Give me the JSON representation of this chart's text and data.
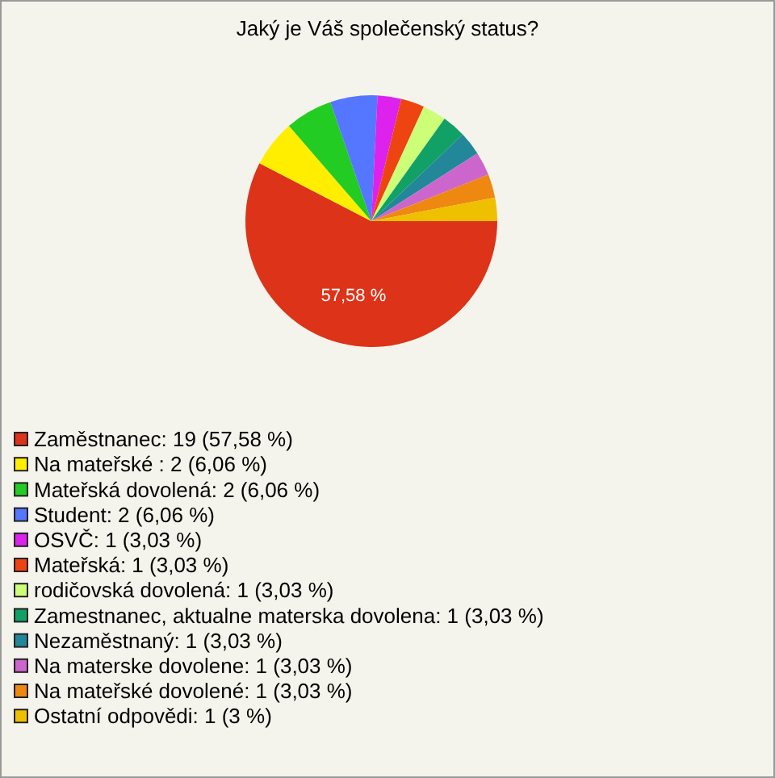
{
  "chart_data": {
    "type": "pie",
    "title": "Jaký je Váš společenský status?",
    "categories": [
      "Zaměstnanec: 19 (57,58 %)",
      "Na mateřské : 2 (6,06 %)",
      "Mateřská dovolená: 2 (6,06 %)",
      "Student: 2 (6,06 %)",
      "OSVČ: 1 (3,03 %)",
      "Mateřská: 1 (3,03 %)",
      "rodičovská dovolená: 1 (3,03 %)",
      "Zamestnanec, aktualne materska dovolena: 1 (3,03 %)",
      "Nezaměstnaný: 1 (3,03 %)",
      "Na materske dovolene: 1 (3,03 %)",
      "Na mateřské dovolené: 1 (3,03 %)",
      "Ostatní odpovědi: 1 (3 %)"
    ],
    "values": [
      57.58,
      6.06,
      6.06,
      6.06,
      3.03,
      3.03,
      3.03,
      3.03,
      3.03,
      3.03,
      3.03,
      3
    ],
    "colors": [
      "#dd3318",
      "#ffee00",
      "#22cc22",
      "#5577ff",
      "#dd22ee",
      "#ee4411",
      "#ccff77",
      "#11a066",
      "#228899",
      "#cc66cc",
      "#ee8811",
      "#eec000"
    ],
    "value_labels": [
      "57,58 %",
      null,
      null,
      null,
      null,
      null,
      null,
      null,
      null,
      null,
      null,
      null
    ],
    "legend": "bottom"
  }
}
